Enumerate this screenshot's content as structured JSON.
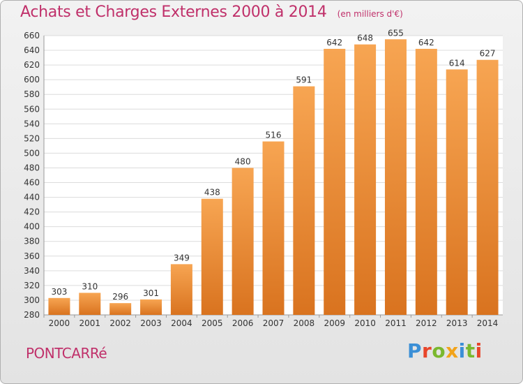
{
  "header": {
    "title": "Achats et Charges Externes 2000 à 2014",
    "subtitle": "(en milliers d'€)"
  },
  "commune": "PONTCARRé",
  "logo": {
    "text": "Proxiti",
    "letters": [
      {
        "ch": "P",
        "color": "#3b8fd6"
      },
      {
        "ch": "r",
        "color": "#e8452a"
      },
      {
        "ch": "o",
        "color": "#7ab82e"
      },
      {
        "ch": "x",
        "color": "#f2a31a"
      },
      {
        "ch": "i",
        "color": "#3b8fd6"
      },
      {
        "ch": "t",
        "color": "#7ab82e"
      },
      {
        "ch": "i",
        "color": "#e8452a"
      }
    ]
  },
  "chart_data": {
    "type": "bar",
    "title": "Achats et Charges Externes 2000 à 2014",
    "subtitle": "(en milliers d'€)",
    "categories": [
      "2000",
      "2001",
      "2002",
      "2003",
      "2004",
      "2005",
      "2006",
      "2007",
      "2008",
      "2009",
      "2010",
      "2011",
      "2012",
      "2013",
      "2014"
    ],
    "values": [
      303,
      310,
      296,
      301,
      349,
      438,
      480,
      516,
      591,
      642,
      648,
      655,
      642,
      614,
      627
    ],
    "ylim": [
      280,
      660
    ],
    "yticks": [
      280,
      300,
      320,
      340,
      360,
      380,
      400,
      420,
      440,
      460,
      480,
      500,
      520,
      540,
      560,
      580,
      600,
      620,
      640,
      660
    ],
    "grid": true,
    "bar_color_top": "#f7a552",
    "bar_color_bottom": "#d9731f",
    "legend": "none"
  }
}
